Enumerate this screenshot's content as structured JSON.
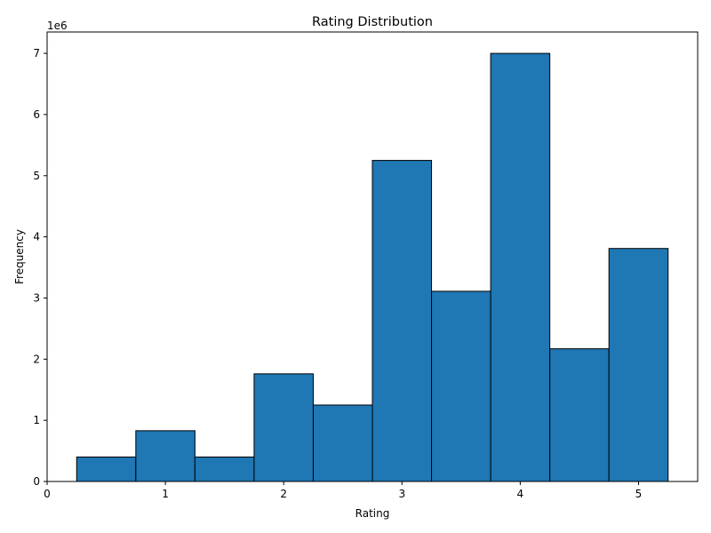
{
  "chart_data": {
    "type": "bar",
    "title": "Rating Distribution",
    "xlabel": "Rating",
    "ylabel": "Frequency",
    "y_offset_label": "1e6",
    "bar_color": "#1f77b4",
    "edge_color": "#000000",
    "bins": [
      {
        "x0": 0.25,
        "x1": 0.75,
        "value": 0.4
      },
      {
        "x0": 0.75,
        "x1": 1.25,
        "value": 0.83
      },
      {
        "x0": 1.25,
        "x1": 1.75,
        "value": 0.4
      },
      {
        "x0": 1.75,
        "x1": 2.25,
        "value": 1.76
      },
      {
        "x0": 2.25,
        "x1": 2.75,
        "value": 1.25
      },
      {
        "x0": 2.75,
        "x1": 3.25,
        "value": 5.25
      },
      {
        "x0": 3.25,
        "x1": 3.75,
        "value": 3.11
      },
      {
        "x0": 3.75,
        "x1": 4.25,
        "value": 7.0
      },
      {
        "x0": 4.25,
        "x1": 4.75,
        "value": 2.17
      },
      {
        "x0": 4.75,
        "x1": 5.25,
        "value": 3.81
      }
    ],
    "xlim": [
      0,
      5.5
    ],
    "ylim": [
      0,
      7.35
    ],
    "x_ticks": [
      0,
      1,
      2,
      3,
      4,
      5
    ],
    "x_tick_labels": [
      "0",
      "1",
      "2",
      "3",
      "4",
      "5"
    ],
    "y_ticks": [
      0,
      1,
      2,
      3,
      4,
      5,
      6,
      7
    ],
    "y_tick_labels": [
      "0",
      "1",
      "2",
      "3",
      "4",
      "5",
      "6",
      "7"
    ],
    "grid": false,
    "legend": "none"
  }
}
